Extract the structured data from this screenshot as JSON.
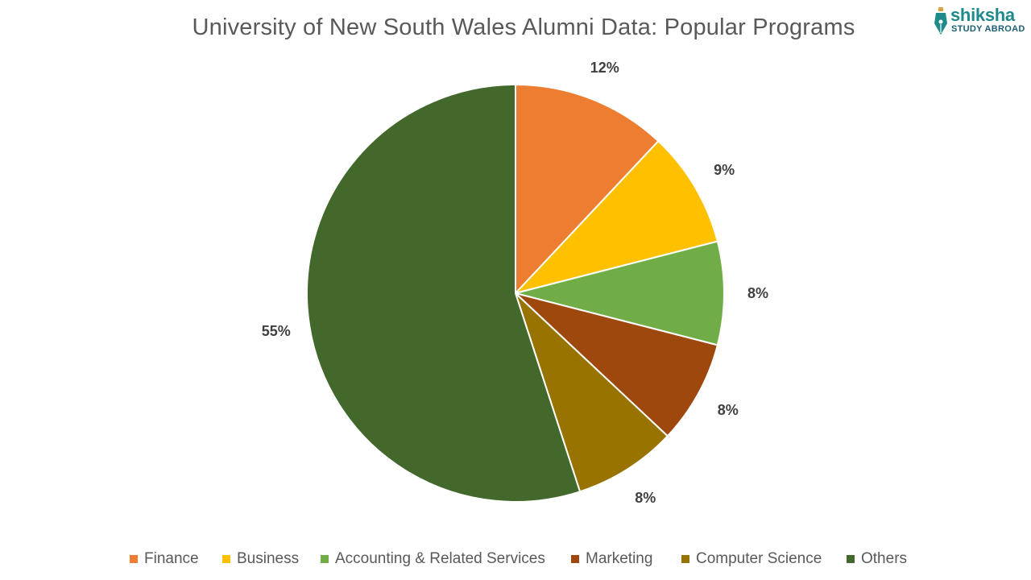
{
  "logo": {
    "name": "shiksha",
    "tagline": "STUDY ABROAD"
  },
  "chart_data": {
    "type": "pie",
    "title": "University of New South Wales Alumni Data: Popular Programs",
    "categories": [
      "Finance",
      "Business",
      "Accounting & Related Services",
      "Marketing",
      "Computer Science",
      "Others"
    ],
    "values": [
      12,
      9,
      8,
      8,
      8,
      55
    ],
    "labels": [
      "12%",
      "9%",
      "8%",
      "8%",
      "8%",
      "55%"
    ],
    "colors": [
      "#ed7d31",
      "#ffc000",
      "#70ad47",
      "#9e480e",
      "#997300",
      "#43682b"
    ],
    "legend_position": "bottom",
    "start_angle": "12 o'clock",
    "direction": "clockwise"
  }
}
